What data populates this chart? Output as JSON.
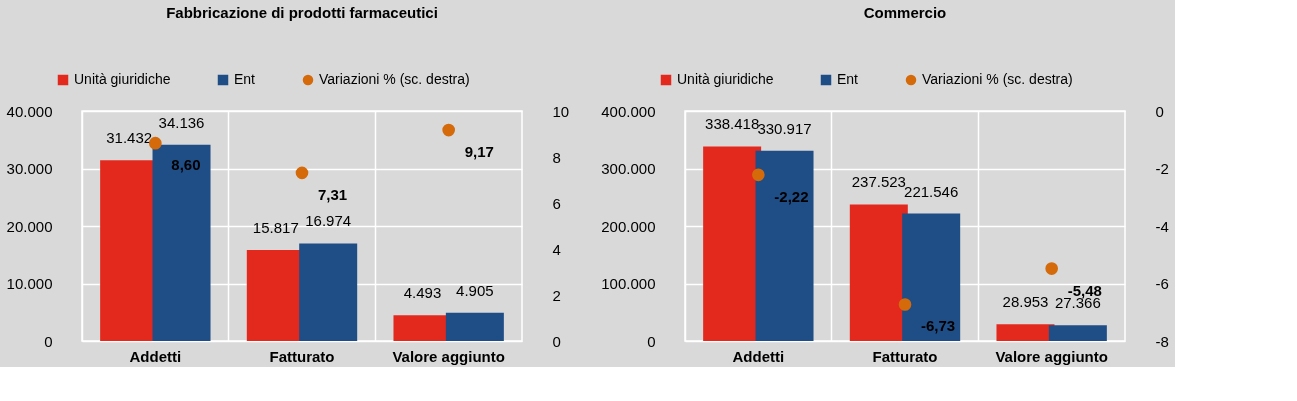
{
  "chart_data": [
    {
      "type": "bar",
      "title": "Fabbricazione di prodotti farmaceutici",
      "categories": [
        "Addetti",
        "Fatturato",
        "Valore aggiunto"
      ],
      "series": [
        {
          "name": "Unità giuridiche",
          "color": "#e3281e",
          "values": [
            31432,
            15817,
            4493
          ],
          "value_labels": [
            "31.432",
            "15.817",
            "4.493"
          ]
        },
        {
          "name": "Ent",
          "color": "#1f4e87",
          "values": [
            34136,
            16974,
            4905
          ],
          "value_labels": [
            "34.136",
            "16.974",
            "4.905"
          ]
        },
        {
          "name": "Variazioni % (sc. destra)",
          "color": "#d46a0a",
          "type": "scatter",
          "axis": "y2",
          "values": [
            8.6,
            7.31,
            9.17
          ],
          "value_labels": [
            "8,60",
            "7,31",
            "9,17"
          ]
        }
      ],
      "ylim": [
        0,
        40000
      ],
      "yticks": [
        0,
        {
          "value": 10000,
          "label": "10.000"
        },
        {
          "value": 20000,
          "label": "20.000"
        },
        {
          "value": 30000,
          "label": "30.000"
        },
        {
          "value": 40000,
          "label": "40.000"
        }
      ],
      "y2lim": [
        0,
        10
      ],
      "y2ticks": [
        0,
        2,
        4,
        6,
        8,
        10
      ],
      "grid": true,
      "legend": "top",
      "marker": "circle"
    },
    {
      "type": "bar",
      "title": "Commercio",
      "categories": [
        "Addetti",
        "Fatturato",
        "Valore aggiunto"
      ],
      "series": [
        {
          "name": "Unità giuridiche",
          "color": "#e3281e",
          "values": [
            338418,
            237523,
            28953
          ],
          "value_labels": [
            "338.418",
            "237.523",
            "28.953"
          ]
        },
        {
          "name": "Ent",
          "color": "#1f4e87",
          "values": [
            330917,
            221546,
            27366
          ],
          "value_labels": [
            "330.917",
            "221.546",
            "27.366"
          ]
        },
        {
          "name": "Variazioni % (sc. destra)",
          "color": "#d46a0a",
          "type": "scatter",
          "axis": "y2",
          "values": [
            -2.22,
            -6.73,
            -5.48
          ],
          "value_labels": [
            "-2,22",
            "-6,73",
            "-5,48"
          ]
        }
      ],
      "ylim": [
        0,
        400000
      ],
      "yticks": [
        0,
        {
          "value": 100000,
          "label": "100.000"
        },
        {
          "value": 200000,
          "label": "200.000"
        },
        {
          "value": 300000,
          "label": "300.000"
        },
        {
          "value": 400000,
          "label": "400.000"
        }
      ],
      "y2lim": [
        -8,
        0
      ],
      "y2ticks": [
        -8,
        -6,
        -4,
        -2,
        0
      ],
      "grid": true,
      "legend": "top",
      "marker": "circle"
    }
  ]
}
